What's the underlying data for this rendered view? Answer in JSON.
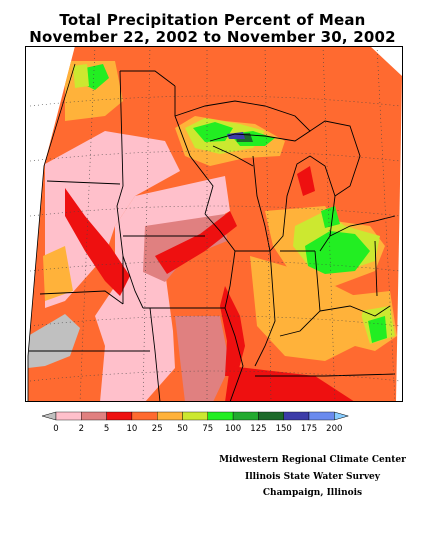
{
  "map": {
    "title_line1": "Total Precipitation Percent of Mean",
    "title_line2": "November 22, 2002 to November 30, 2002"
  },
  "legend": {
    "labels": [
      "0",
      "2",
      "5",
      "10",
      "25",
      "50",
      "75",
      "100",
      "125",
      "150",
      "175",
      "200"
    ],
    "colors": [
      "#c0c0c0",
      "#ffc0cb",
      "#e08080",
      "#ee1010",
      "#ff6a30",
      "#ffb23a",
      "#cce830",
      "#22ee22",
      "#22aa30",
      "#1c6a2a",
      "#3c3ca8",
      "#6a8aee",
      "#88ccff"
    ]
  },
  "credits": {
    "line1": "Midwestern Regional Climate Center",
    "line2": "Illinois State Water Survey",
    "line3": "Champaign, Illinois"
  }
}
